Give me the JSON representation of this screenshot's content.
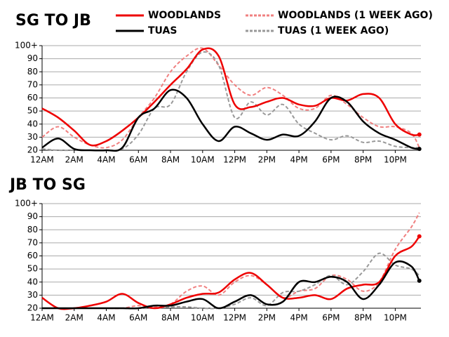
{
  "chart_data": [
    {
      "type": "line",
      "title": "SG TO JB",
      "x": [
        0,
        1,
        2,
        3,
        4,
        5,
        6,
        7,
        8,
        9,
        10,
        11,
        12,
        13,
        14,
        15,
        16,
        17,
        18,
        19,
        20,
        21,
        22,
        23,
        23.5
      ],
      "xlim": [
        0,
        23.6
      ],
      "xticks": [
        {
          "value": 0,
          "label": "12AM"
        },
        {
          "value": 2,
          "label": "2AM"
        },
        {
          "value": 4,
          "label": "4AM"
        },
        {
          "value": 6,
          "label": "6AM"
        },
        {
          "value": 8,
          "label": "8AM"
        },
        {
          "value": 10,
          "label": "10AM"
        },
        {
          "value": 12,
          "label": "12PM"
        },
        {
          "value": 14,
          "label": "2PM"
        },
        {
          "value": 16,
          "label": "4PM"
        },
        {
          "value": 18,
          "label": "6PM"
        },
        {
          "value": 20,
          "label": "8PM"
        },
        {
          "value": 22,
          "label": "10PM"
        }
      ],
      "ylim": [
        20,
        100
      ],
      "yticks": [
        20,
        30,
        40,
        50,
        60,
        70,
        80,
        90,
        {
          "value": 100,
          "label": "100+"
        }
      ],
      "grid": true,
      "series": [
        {
          "name": "WOODLANDS (1 WEEK AGO)",
          "color": "#f08080",
          "dashed": true,
          "values": [
            30,
            38,
            30,
            24,
            22,
            28,
            45,
            60,
            80,
            92,
            98,
            85,
            70,
            62,
            68,
            62,
            52,
            52,
            62,
            55,
            45,
            38,
            38,
            33,
            22
          ]
        },
        {
          "name": "TUAS (1 WEEK AGO)",
          "color": "#999999",
          "dashed": true,
          "values": [
            21,
            20,
            20,
            20,
            20,
            21,
            32,
            52,
            55,
            80,
            95,
            85,
            45,
            57,
            47,
            55,
            40,
            33,
            28,
            31,
            26,
            27,
            23,
            22,
            22
          ]
        },
        {
          "name": "WOODLANDS",
          "color": "#ee0000",
          "dashed": false,
          "values": [
            52,
            45,
            35,
            24,
            27,
            35,
            45,
            57,
            70,
            82,
            97,
            92,
            55,
            53,
            57,
            60,
            55,
            54,
            60,
            58,
            63,
            60,
            40,
            32,
            32
          ]
        },
        {
          "name": "TUAS",
          "color": "#000000",
          "dashed": false,
          "values": [
            22,
            29,
            21,
            20,
            20,
            22,
            45,
            52,
            66,
            60,
            40,
            27,
            38,
            33,
            28,
            32,
            31,
            42,
            60,
            57,
            42,
            33,
            28,
            22,
            21
          ]
        }
      ]
    },
    {
      "type": "line",
      "title": "JB TO SG",
      "x": [
        0,
        1,
        2,
        3,
        4,
        5,
        6,
        7,
        8,
        9,
        10,
        11,
        12,
        13,
        14,
        15,
        16,
        17,
        18,
        19,
        20,
        21,
        22,
        23,
        23.5
      ],
      "xlim": [
        0,
        23.6
      ],
      "xticks": [
        {
          "value": 0,
          "label": "12AM"
        },
        {
          "value": 2,
          "label": "2AM"
        },
        {
          "value": 4,
          "label": "4AM"
        },
        {
          "value": 6,
          "label": "6AM"
        },
        {
          "value": 8,
          "label": "8AM"
        },
        {
          "value": 10,
          "label": "10AM"
        },
        {
          "value": 12,
          "label": "12PM"
        },
        {
          "value": 14,
          "label": "2PM"
        },
        {
          "value": 16,
          "label": "4PM"
        },
        {
          "value": 18,
          "label": "6PM"
        },
        {
          "value": 20,
          "label": "8PM"
        },
        {
          "value": 22,
          "label": "10PM"
        }
      ],
      "ylim": [
        20,
        100
      ],
      "yticks": [
        20,
        30,
        40,
        50,
        60,
        70,
        80,
        90,
        {
          "value": 100,
          "label": "100+"
        }
      ],
      "grid": true,
      "series": [
        {
          "color": "#f08080",
          "dashed": true,
          "values": [
            20,
            20,
            20,
            20,
            20,
            20,
            22,
            21,
            23,
            33,
            37,
            30,
            40,
            45,
            38,
            28,
            33,
            35,
            45,
            42,
            33,
            40,
            65,
            82,
            93
          ]
        },
        {
          "color": "#999999",
          "dashed": true,
          "values": [
            20,
            20,
            20,
            20,
            20,
            20,
            20,
            20,
            21,
            21,
            20,
            20,
            23,
            28,
            22,
            32,
            33,
            38,
            45,
            38,
            48,
            62,
            53,
            50,
            45
          ]
        },
        {
          "color": "#ee0000",
          "dashed": false,
          "values": [
            28,
            20,
            20,
            22,
            25,
            31,
            24,
            20,
            23,
            28,
            31,
            32,
            42,
            47,
            38,
            28,
            28,
            30,
            27,
            35,
            38,
            40,
            60,
            67,
            75
          ]
        },
        {
          "color": "#000000",
          "dashed": false,
          "values": [
            20,
            20,
            20,
            20,
            20,
            20,
            20,
            22,
            22,
            25,
            27,
            20,
            25,
            30,
            23,
            25,
            40,
            40,
            44,
            40,
            27,
            38,
            55,
            52,
            41
          ]
        }
      ]
    }
  ]
}
